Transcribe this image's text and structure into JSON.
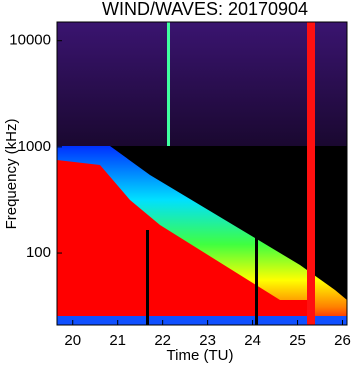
{
  "chart_data": {
    "type": "spectrogram",
    "title": "WIND/WAVES: 20170904",
    "xlabel": "Time (TU)",
    "ylabel": "Frequency (kHz)",
    "xlim": [
      19.65,
      26.1
    ],
    "xticks": [
      20,
      21,
      22,
      23,
      24,
      25,
      26
    ],
    "ylim": [
      21,
      15000
    ],
    "yticks": [
      100,
      1000,
      10000
    ],
    "ylog": true
  }
}
